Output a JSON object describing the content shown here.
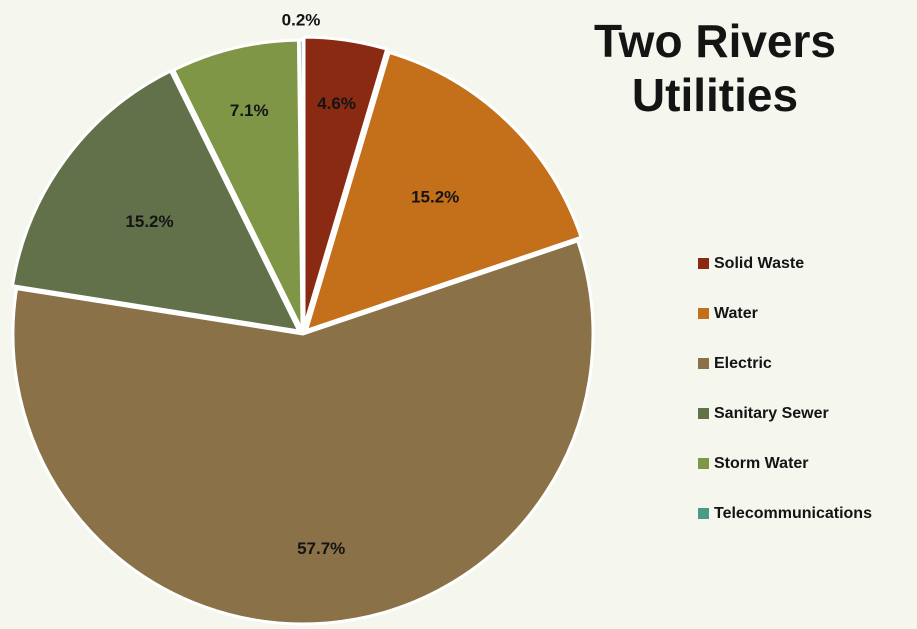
{
  "chart_data": {
    "type": "pie",
    "title": "Two Rivers Utilities",
    "legend_position": "right",
    "exploded": true,
    "slices": [
      {
        "name": "Solid Waste",
        "value": 4.6,
        "label": "4.6%",
        "color": "#8b2a12"
      },
      {
        "name": "Water",
        "value": 15.2,
        "label": "15.2%",
        "color": "#c46f1a"
      },
      {
        "name": "Electric",
        "value": 57.7,
        "label": "57.7%",
        "color": "#8b7148"
      },
      {
        "name": "Sanitary Sewer",
        "value": 15.2,
        "label": "15.2%",
        "color": "#63714b"
      },
      {
        "name": "Storm Water",
        "value": 7.1,
        "label": "7.1%",
        "color": "#809647"
      },
      {
        "name": "Telecommunications",
        "value": 0.2,
        "label": "0.2%",
        "color": "#4b9a86"
      }
    ]
  }
}
